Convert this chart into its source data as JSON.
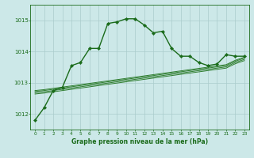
{
  "title": "Graphe pression niveau de la mer (hPa)",
  "bg_color": "#cce8e8",
  "grid_color": "#aacccc",
  "line_color_main": "#1a6b1a",
  "line_color_flat": "#2e7d2e",
  "x_labels": [
    0,
    1,
    2,
    3,
    4,
    5,
    6,
    7,
    8,
    9,
    10,
    11,
    12,
    13,
    14,
    15,
    16,
    17,
    18,
    19,
    20,
    21,
    22,
    23
  ],
  "ylim": [
    1011.5,
    1015.5
  ],
  "yticks": [
    1012,
    1013,
    1014,
    1015
  ],
  "series_main": [
    1011.8,
    1012.2,
    1012.75,
    1012.85,
    1013.55,
    1013.65,
    1014.1,
    1014.1,
    1014.9,
    1014.95,
    1015.05,
    1015.05,
    1014.85,
    1014.6,
    1014.65,
    1014.1,
    1013.85,
    1013.85,
    1013.65,
    1013.55,
    1013.6,
    1013.9,
    1013.85,
    1013.85
  ],
  "series_flat1": [
    1012.75,
    1012.78,
    1012.82,
    1012.86,
    1012.9,
    1012.94,
    1012.98,
    1013.02,
    1013.06,
    1013.1,
    1013.14,
    1013.18,
    1013.22,
    1013.26,
    1013.3,
    1013.34,
    1013.38,
    1013.42,
    1013.46,
    1013.5,
    1013.54,
    1013.58,
    1013.72,
    1013.82
  ],
  "series_flat2": [
    1012.72,
    1012.75,
    1012.79,
    1012.83,
    1012.87,
    1012.91,
    1012.95,
    1012.99,
    1013.03,
    1013.07,
    1013.11,
    1013.15,
    1013.19,
    1013.23,
    1013.27,
    1013.31,
    1013.35,
    1013.39,
    1013.43,
    1013.47,
    1013.51,
    1013.55,
    1013.69,
    1013.79
  ],
  "series_flat3": [
    1012.68,
    1012.71,
    1012.75,
    1012.79,
    1012.83,
    1012.87,
    1012.91,
    1012.95,
    1012.99,
    1013.03,
    1013.07,
    1013.11,
    1013.15,
    1013.19,
    1013.23,
    1013.27,
    1013.31,
    1013.35,
    1013.39,
    1013.43,
    1013.47,
    1013.51,
    1013.65,
    1013.75
  ],
  "series_flat4": [
    1012.64,
    1012.67,
    1012.71,
    1012.75,
    1012.79,
    1012.83,
    1012.87,
    1012.91,
    1012.95,
    1012.99,
    1013.03,
    1013.07,
    1013.11,
    1013.15,
    1013.19,
    1013.23,
    1013.27,
    1013.31,
    1013.35,
    1013.39,
    1013.43,
    1013.47,
    1013.61,
    1013.71
  ]
}
